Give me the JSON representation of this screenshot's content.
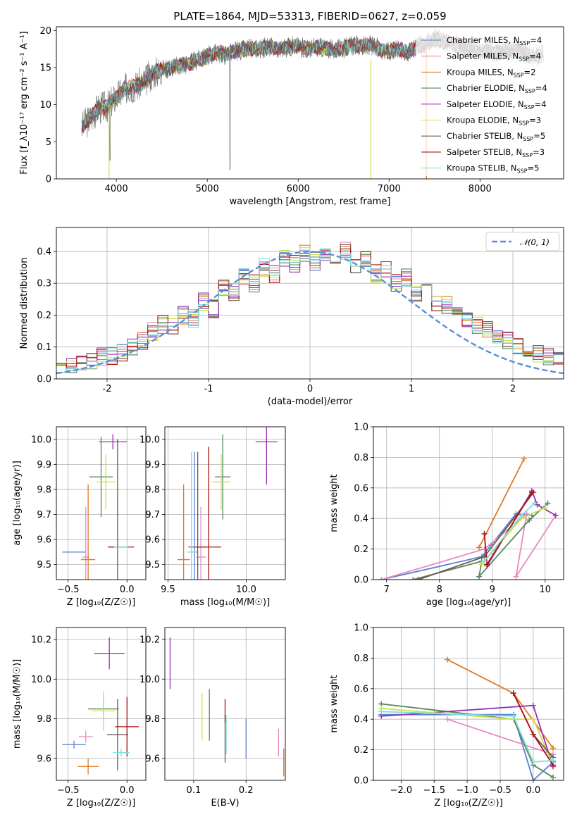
{
  "chart_data": [
    {
      "id": "spectrum",
      "type": "line",
      "title": "PLATE=1864, MJD=53313, FIBERID=0627, z=0.059",
      "xlabel": "wavelength [Angstrom, rest frame]",
      "ylabel": "Flux [f_λ10⁻¹⁷ erg cm⁻² s⁻¹ A⁻¹]",
      "xlim": [
        3340,
        8920
      ],
      "ylim": [
        0,
        20.5
      ],
      "xticks": [
        4000,
        5000,
        6000,
        7000,
        8000
      ],
      "yticks": [
        0,
        5,
        10,
        15,
        20
      ],
      "grid": false,
      "legend_position": "right",
      "data_continuum": {
        "x": [
          3620,
          3700,
          3800,
          3900,
          4000,
          4100,
          4200,
          4300,
          4400,
          4500,
          4600,
          4700,
          4800,
          4900,
          5000,
          5100,
          5200,
          5300,
          5400,
          5500,
          5600,
          5700,
          5800,
          5900,
          6000,
          6100,
          6200,
          6300,
          6400,
          6500,
          6600,
          6700,
          6800,
          6900,
          7000,
          7100,
          7200,
          7300,
          7400,
          7500,
          7600,
          7700,
          7800,
          7900,
          8000,
          8100,
          8200,
          8300,
          8400,
          8500,
          8600,
          8700
        ],
        "y": [
          7.0,
          8.0,
          9.5,
          9.8,
          11.0,
          12.2,
          12.5,
          13.0,
          14.2,
          14.8,
          15.0,
          15.3,
          15.6,
          16.0,
          16.5,
          17.0,
          16.8,
          17.2,
          17.4,
          17.6,
          17.6,
          17.8,
          17.5,
          17.8,
          17.9,
          17.5,
          17.8,
          17.6,
          17.4,
          17.6,
          18.0,
          17.8,
          18.0,
          17.4,
          17.2,
          17.6,
          17.0,
          17.8,
          18.2,
          18.8,
          18.5,
          18.2,
          17.8,
          17.5,
          17.0,
          17.3,
          17.0,
          17.2,
          17.6,
          16.8,
          16.5,
          16.8
        ]
      },
      "series": [
        {
          "name": "Chabrier MILES",
          "nssp": "4",
          "color": "#5a7fd0"
        },
        {
          "name": "Salpeter MILES",
          "nssp": "4",
          "color": "#e88ac2"
        },
        {
          "name": "Kroupa MILES",
          "nssp": "2",
          "color": "#e07a22"
        },
        {
          "name": "Chabrier ELODIE",
          "nssp": "4",
          "color": "#55895a"
        },
        {
          "name": "Salpeter ELODIE",
          "nssp": "4",
          "color": "#9b30b0"
        },
        {
          "name": "Kroupa ELODIE",
          "nssp": "3",
          "color": "#c8e24e"
        },
        {
          "name": "Chabrier STELIB",
          "nssp": "5",
          "color": "#6b5a4e"
        },
        {
          "name": "Salpeter STELIB",
          "nssp": "3",
          "color": "#b01010"
        },
        {
          "name": "Kroupa STELIB",
          "nssp": "5",
          "color": "#7edde0"
        }
      ]
    },
    {
      "id": "residuals",
      "type": "line",
      "title": "",
      "xlabel": "(data-model)/error",
      "ylabel": "Normed distribution",
      "xlim": [
        -2.5,
        2.5
      ],
      "ylim": [
        0,
        0.475
      ],
      "xticks": [
        -2,
        -1,
        0,
        1,
        2
      ],
      "yticks": [
        0.0,
        0.1,
        0.2,
        0.3,
        0.4
      ],
      "grid": true,
      "legend_position": "top-right",
      "reference_curve": {
        "name": "𝒩(0, 1)",
        "mean": 0,
        "sd": 1,
        "color": "#5a8fd8"
      },
      "bin_width": 0.1,
      "bin_edges_start": -2.5,
      "base_histogram": [
        0.04,
        0.04,
        0.05,
        0.06,
        0.07,
        0.07,
        0.08,
        0.1,
        0.12,
        0.15,
        0.17,
        0.16,
        0.2,
        0.19,
        0.24,
        0.22,
        0.28,
        0.27,
        0.32,
        0.3,
        0.35,
        0.33,
        0.38,
        0.36,
        0.39,
        0.37,
        0.4,
        0.38,
        0.4,
        0.35,
        0.37,
        0.33,
        0.34,
        0.3,
        0.32,
        0.27,
        0.29,
        0.24,
        0.23,
        0.21,
        0.19,
        0.17,
        0.15,
        0.13,
        0.12,
        0.1,
        0.09,
        0.08,
        0.07,
        0.06,
        0.05
      ]
    },
    {
      "id": "age_vs_Z",
      "type": "scatter",
      "xlabel": "Z [log₁₀(Z/Z☉)]",
      "ylabel": "age  [log₁₀(age/yr)]",
      "xlim": [
        -0.6,
        0.16
      ],
      "ylim": [
        9.44,
        10.05
      ],
      "xticks": [
        -0.5,
        0.0
      ],
      "xtick_labels": [
        "−0.5",
        "0.0"
      ],
      "yticks": [
        9.5,
        9.6,
        9.7,
        9.8,
        9.9,
        10.0
      ],
      "grid": true,
      "points": [
        {
          "x": -0.45,
          "xerr": 0.1,
          "y": 9.55,
          "yerr": 0.0,
          "color": "#5a7fd0"
        },
        {
          "x": -0.35,
          "xerr": 0.03,
          "y": 9.53,
          "yerr": 0.2,
          "color": "#e88ac2"
        },
        {
          "x": -0.33,
          "xerr": 0.06,
          "y": 9.52,
          "yerr": 0.3,
          "color": "#e07a22"
        },
        {
          "x": -0.22,
          "xerr": 0.1,
          "y": 9.85,
          "yerr": 0.16,
          "color": "#55895a"
        },
        {
          "x": -0.12,
          "xerr": 0.12,
          "y": 9.99,
          "yerr": 0.03,
          "color": "#9b30b0"
        },
        {
          "x": -0.18,
          "xerr": 0.08,
          "y": 9.83,
          "yerr": 0.11,
          "color": "#c8e24e"
        },
        {
          "x": -0.08,
          "xerr": 0.08,
          "y": 9.57,
          "yerr": 0.43,
          "color": "#6b5a4e"
        },
        {
          "x": -0.05,
          "xerr": 0.11,
          "y": 9.57,
          "yerr": 0.0,
          "color": "#b01010"
        },
        {
          "x": -0.05,
          "xerr": 0.06,
          "y": 9.57,
          "yerr": 0.0,
          "color": "#7edde0"
        }
      ]
    },
    {
      "id": "age_vs_mass",
      "type": "scatter",
      "xlabel": "mass [log₁₀(M/M☉)]",
      "ylabel": "",
      "xlim": [
        9.48,
        10.25
      ],
      "ylim": [
        9.44,
        10.05
      ],
      "xticks": [
        9.5,
        10.0
      ],
      "xtick_labels": [
        "9.5",
        "10.0"
      ],
      "yticks": [
        9.5,
        9.6,
        9.7,
        9.8,
        9.9,
        10.0
      ],
      "grid": true,
      "points": [
        {
          "x": 9.67,
          "xerr": 0.02,
          "y": 9.55,
          "yerr": 0.4,
          "color": "#5a7fd0"
        },
        {
          "x": 9.71,
          "xerr": 0.03,
          "y": 9.53,
          "yerr": 0.2,
          "color": "#e88ac2"
        },
        {
          "x": 9.6,
          "xerr": 0.04,
          "y": 9.52,
          "yerr": 0.3,
          "color": "#e07a22"
        },
        {
          "x": 9.85,
          "xerr": 0.05,
          "y": 9.85,
          "yerr": 0.17,
          "color": "#55895a"
        },
        {
          "x": 10.13,
          "xerr": 0.07,
          "y": 9.99,
          "yerr": 0.17,
          "color": "#9b30b0"
        },
        {
          "x": 9.84,
          "xerr": 0.06,
          "y": 9.83,
          "yerr": 0.11,
          "color": "#c8e24e"
        },
        {
          "x": 9.69,
          "xerr": 0.06,
          "y": 9.57,
          "yerr": 0.38,
          "color": "#6b5a4e"
        },
        {
          "x": 9.76,
          "xerr": 0.08,
          "y": 9.57,
          "yerr": 0.4,
          "color": "#b01010"
        },
        {
          "x": 9.65,
          "xerr": 0.03,
          "y": 9.55,
          "yerr": 0.4,
          "color": "#7edde0"
        }
      ]
    },
    {
      "id": "weight_vs_age",
      "type": "line",
      "xlabel": "age  [log₁₀(age/yr)]",
      "ylabel": "mass weight",
      "xlim": [
        6.75,
        10.35
      ],
      "ylim": [
        0,
        1.0
      ],
      "xticks": [
        7,
        8,
        9,
        10
      ],
      "yticks": [
        0.0,
        0.2,
        0.4,
        0.6,
        0.8,
        1.0
      ],
      "grid": true,
      "series": [
        {
          "color": "#5a7fd0",
          "x": [
            6.9,
            8.8,
            9.45,
            9.75
          ],
          "y": [
            0.0,
            0.15,
            0.43,
            0.42
          ]
        },
        {
          "color": "#e88ac2",
          "x": [
            6.9,
            8.85,
            9.65,
            9.45,
            10.2
          ],
          "y": [
            0.0,
            0.2,
            0.43,
            0.02,
            0.42
          ]
        },
        {
          "color": "#e07a22",
          "x": [
            8.75,
            9.6
          ],
          "y": [
            0.21,
            0.79
          ]
        },
        {
          "color": "#55895a",
          "x": [
            7.5,
            8.8,
            8.75,
            9.7,
            10.05
          ],
          "y": [
            0.0,
            0.12,
            0.02,
            0.39,
            0.5
          ]
        },
        {
          "color": "#9b30b0",
          "x": [
            8.9,
            9.75,
            9.85,
            10.2
          ],
          "y": [
            0.09,
            0.58,
            0.49,
            0.42
          ]
        },
        {
          "color": "#c8e24e",
          "x": [
            8.8,
            9.55,
            10.0
          ],
          "y": [
            0.1,
            0.4,
            0.47
          ]
        },
        {
          "color": "#6b5a4e",
          "x": [
            7.6,
            8.85,
            9.78
          ],
          "y": [
            0.0,
            0.15,
            0.57
          ]
        },
        {
          "color": "#b01010",
          "x": [
            8.85,
            8.9,
            9.75
          ],
          "y": [
            0.3,
            0.1,
            0.57
          ]
        },
        {
          "color": "#7edde0",
          "x": [
            8.85,
            9.55,
            9.8
          ],
          "y": [
            0.12,
            0.42,
            0.5
          ]
        }
      ]
    },
    {
      "id": "mass_vs_Z",
      "type": "scatter",
      "xlabel": "Z [log₁₀(Z/Z☉)]",
      "ylabel": "mass [log₁₀(M/M☉)]",
      "xlim": [
        -0.6,
        0.16
      ],
      "ylim": [
        9.49,
        10.26
      ],
      "xticks": [
        -0.5,
        0.0
      ],
      "xtick_labels": [
        "−0.5",
        "0.0"
      ],
      "yticks": [
        9.6,
        9.8,
        10.0,
        10.2
      ],
      "grid": true,
      "points": [
        {
          "x": -0.45,
          "xerr": 0.1,
          "y": 9.67,
          "yerr": 0.02,
          "color": "#5a7fd0"
        },
        {
          "x": -0.35,
          "xerr": 0.06,
          "y": 9.71,
          "yerr": 0.03,
          "color": "#e88ac2"
        },
        {
          "x": -0.33,
          "xerr": 0.09,
          "y": 9.56,
          "yerr": 0.04,
          "color": "#e07a22"
        },
        {
          "x": -0.2,
          "xerr": 0.13,
          "y": 9.85,
          "yerr": 0.05,
          "color": "#55895a"
        },
        {
          "x": -0.15,
          "xerr": 0.13,
          "y": 10.13,
          "yerr": 0.08,
          "color": "#9b30b0"
        },
        {
          "x": -0.2,
          "xerr": 0.1,
          "y": 9.84,
          "yerr": 0.1,
          "color": "#c8e24e"
        },
        {
          "x": -0.08,
          "xerr": 0.09,
          "y": 9.72,
          "yerr": 0.18,
          "color": "#6b5a4e"
        },
        {
          "x": 0.0,
          "xerr": 0.1,
          "y": 9.76,
          "yerr": 0.15,
          "color": "#b01010"
        },
        {
          "x": -0.05,
          "xerr": 0.07,
          "y": 9.63,
          "yerr": 0.02,
          "color": "#7edde0"
        }
      ]
    },
    {
      "id": "mass_vs_EBV",
      "type": "scatter",
      "xlabel": "E(B-V)",
      "ylabel": "",
      "xlim": [
        0.045,
        0.275
      ],
      "ylim": [
        9.49,
        10.26
      ],
      "xticks": [
        0.1,
        0.2
      ],
      "xtick_labels": [
        "0.1",
        "0.2"
      ],
      "yticks": [
        9.6,
        9.8,
        10.0,
        10.2
      ],
      "grid": true,
      "points": [
        {
          "x": 0.2,
          "xerr": 0,
          "y": 9.7,
          "yerr": 0.1,
          "color": "#5a7fd0"
        },
        {
          "x": 0.262,
          "xerr": 0,
          "y": 9.68,
          "yerr": 0.07,
          "color": "#e88ac2"
        },
        {
          "x": 0.272,
          "xerr": 0,
          "y": 9.58,
          "yerr": 0.07,
          "color": "#e07a22"
        },
        {
          "x": 0.13,
          "xerr": 0,
          "y": 9.82,
          "yerr": 0.13,
          "color": "#55895a"
        },
        {
          "x": 0.055,
          "xerr": 0,
          "y": 10.08,
          "yerr": 0.13,
          "color": "#9b30b0"
        },
        {
          "x": 0.116,
          "xerr": 0,
          "y": 9.81,
          "yerr": 0.12,
          "color": "#c8e24e"
        },
        {
          "x": 0.16,
          "xerr": 0,
          "y": 9.7,
          "yerr": 0.12,
          "color": "#6b5a4e"
        },
        {
          "x": 0.16,
          "xerr": 0,
          "y": 9.84,
          "yerr": 0.06,
          "color": "#b01010"
        },
        {
          "x": 0.162,
          "xerr": 0,
          "y": 9.72,
          "yerr": 0.1,
          "color": "#7edde0"
        }
      ]
    },
    {
      "id": "weight_vs_Z",
      "type": "line",
      "xlabel": "Z [log₁₀(Z/Z☉)]",
      "ylabel": "mass weight",
      "xlim": [
        -2.42,
        0.46
      ],
      "ylim": [
        0,
        1.0
      ],
      "xticks": [
        -2.0,
        -1.5,
        -1.0,
        -0.5,
        0.0
      ],
      "xtick_labels": [
        "−2.0",
        "−1.5",
        "−1.0",
        "−0.5",
        "0.0"
      ],
      "yticks": [
        0.0,
        0.2,
        0.4,
        0.6,
        0.8,
        1.0
      ],
      "grid": true,
      "series": [
        {
          "color": "#5a7fd0",
          "x": [
            -2.3,
            -0.3,
            0.0,
            0.3
          ],
          "y": [
            0.43,
            0.43,
            0.0,
            0.12
          ]
        },
        {
          "color": "#e88ac2",
          "x": [
            -1.3,
            0.3
          ],
          "y": [
            0.4,
            0.17
          ]
        },
        {
          "color": "#e07a22",
          "x": [
            -1.3,
            -0.3,
            0.3
          ],
          "y": [
            0.79,
            0.57,
            0.21
          ]
        },
        {
          "color": "#55895a",
          "x": [
            -2.3,
            -0.3,
            0.0,
            0.3
          ],
          "y": [
            0.5,
            0.4,
            0.1,
            0.02
          ]
        },
        {
          "color": "#9b30b0",
          "x": [
            -2.3,
            0.0,
            0.3
          ],
          "y": [
            0.42,
            0.49,
            0.09
          ]
        },
        {
          "color": "#c8e24e",
          "x": [
            -2.3,
            -0.3,
            0.0,
            0.3
          ],
          "y": [
            0.47,
            0.4,
            0.4,
            0.1
          ]
        },
        {
          "color": "#6b5a4e",
          "x": [
            -0.3,
            0.0,
            0.3
          ],
          "y": [
            0.57,
            0.3,
            0.15
          ]
        },
        {
          "color": "#b01010",
          "x": [
            -0.3,
            0.0,
            0.3
          ],
          "y": [
            0.57,
            0.3,
            0.1
          ]
        },
        {
          "color": "#7edde0",
          "x": [
            -2.3,
            -0.3,
            0.0,
            0.3
          ],
          "y": [
            0.45,
            0.42,
            0.12,
            0.13
          ]
        }
      ]
    }
  ]
}
